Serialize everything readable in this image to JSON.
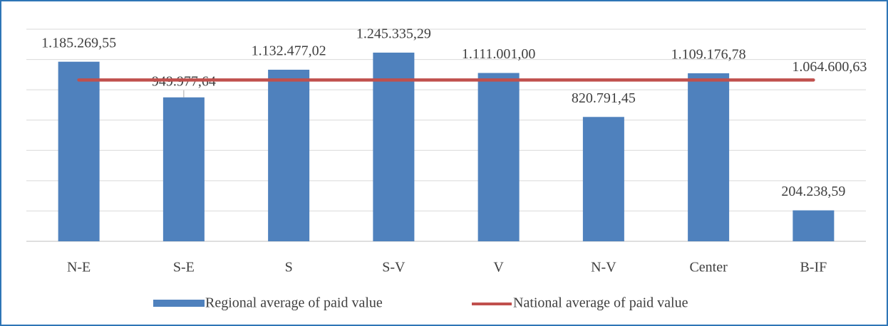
{
  "chart_data": {
    "type": "bar",
    "categories": [
      "N-E",
      "S-E",
      "S",
      "S-V",
      "V",
      "N-V",
      "Center",
      "B-IF"
    ],
    "series": [
      {
        "name": "Regional average of paid value",
        "color": "#4f81bd",
        "values": [
          1185269.55,
          949977.64,
          1132477.02,
          1245335.29,
          1111001.0,
          820791.45,
          1109176.78,
          204238.59
        ],
        "value_labels": [
          "1.185.269,55",
          "949.977,64",
          "1.132.477,02",
          "1.245.335,29",
          "1.111.001,00",
          "820.791,45",
          "1.109.176,78",
          "204.238,59"
        ]
      }
    ],
    "reference_line": {
      "name": "National average of paid value",
      "color": "#c0504d",
      "value": 1064600.63,
      "value_label": "1.064.600,63"
    },
    "ylim": [
      0,
      1400000
    ],
    "yticks": [
      0,
      200000,
      400000,
      600000,
      800000,
      1000000,
      1200000,
      1400000
    ],
    "grid": true,
    "legend": "bottom"
  }
}
